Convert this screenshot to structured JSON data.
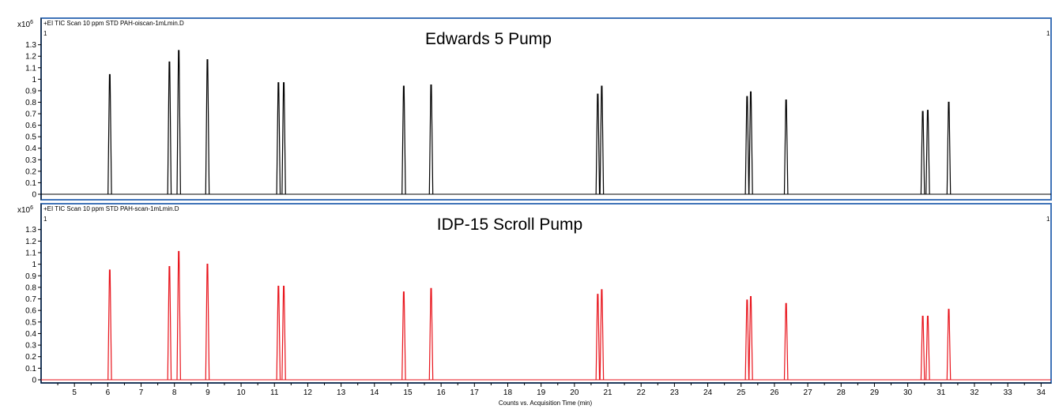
{
  "chart_data": {
    "type": "line",
    "x_range": [
      4,
      34.3
    ],
    "y_range": [
      0,
      1.38
    ],
    "y_ticks": [
      0,
      0.1,
      0.2,
      0.3,
      0.4,
      0.5,
      0.6,
      0.7,
      0.8,
      0.9,
      1,
      1.1,
      1.2,
      1.3
    ],
    "y_tick_labels": [
      "0",
      "0.1",
      "0.2",
      "0.3",
      "0.4",
      "0.5",
      "0.6",
      "0.7",
      "0.8",
      "0.9",
      "1",
      "1.1",
      "1.2",
      "1.3"
    ],
    "x_ticks": [
      5,
      6,
      7,
      8,
      9,
      10,
      11,
      12,
      13,
      14,
      15,
      16,
      17,
      18,
      19,
      20,
      21,
      22,
      23,
      24,
      25,
      26,
      27,
      28,
      29,
      30,
      31,
      32,
      33,
      34
    ],
    "x_tick_labels": [
      "5",
      "6",
      "7",
      "8",
      "9",
      "10",
      "11",
      "12",
      "13",
      "14",
      "15",
      "16",
      "17",
      "18",
      "19",
      "20",
      "21",
      "22",
      "23",
      "24",
      "25",
      "26",
      "27",
      "28",
      "29",
      "30",
      "31",
      "32",
      "33",
      "34"
    ],
    "y_multiplier_label": "x10",
    "y_multiplier_exponent": "6",
    "xlabel": "Counts vs. Acquisition Time (min)",
    "panels": [
      {
        "header": "+EI TIC Scan 10 ppm STD PAH-oiscan-1mLmin.D",
        "title": "Edwards 5 Pump",
        "corner_left": "1",
        "corner_right": "1",
        "color": "#000000",
        "peaks": [
          {
            "x": 6.06,
            "y": 1.04
          },
          {
            "x": 7.85,
            "y": 1.15
          },
          {
            "x": 8.13,
            "y": 1.25
          },
          {
            "x": 8.99,
            "y": 1.17
          },
          {
            "x": 11.12,
            "y": 0.97
          },
          {
            "x": 11.28,
            "y": 0.97
          },
          {
            "x": 14.88,
            "y": 0.94
          },
          {
            "x": 15.7,
            "y": 0.95
          },
          {
            "x": 20.7,
            "y": 0.87
          },
          {
            "x": 20.82,
            "y": 0.94
          },
          {
            "x": 25.18,
            "y": 0.85
          },
          {
            "x": 25.29,
            "y": 0.89
          },
          {
            "x": 26.35,
            "y": 0.82
          },
          {
            "x": 30.45,
            "y": 0.72
          },
          {
            "x": 30.6,
            "y": 0.73
          },
          {
            "x": 31.23,
            "y": 0.8
          }
        ]
      },
      {
        "header": "+EI TIC Scan 10 ppm STD PAH-scan-1mLmin.D",
        "title": "IDP-15 Scroll Pump",
        "corner_left": "1",
        "corner_right": "1",
        "color": "#e8131b",
        "peaks": [
          {
            "x": 6.06,
            "y": 0.95
          },
          {
            "x": 7.85,
            "y": 0.98
          },
          {
            "x": 8.13,
            "y": 1.11
          },
          {
            "x": 8.99,
            "y": 1.0
          },
          {
            "x": 11.12,
            "y": 0.81
          },
          {
            "x": 11.28,
            "y": 0.81
          },
          {
            "x": 14.88,
            "y": 0.76
          },
          {
            "x": 15.7,
            "y": 0.79
          },
          {
            "x": 20.7,
            "y": 0.74
          },
          {
            "x": 20.82,
            "y": 0.78
          },
          {
            "x": 25.18,
            "y": 0.69
          },
          {
            "x": 25.29,
            "y": 0.72
          },
          {
            "x": 26.35,
            "y": 0.66
          },
          {
            "x": 30.45,
            "y": 0.55
          },
          {
            "x": 30.6,
            "y": 0.55
          },
          {
            "x": 31.23,
            "y": 0.61
          }
        ]
      }
    ],
    "colors": {
      "frame": "#3f73b8",
      "axis": "#000000"
    }
  }
}
